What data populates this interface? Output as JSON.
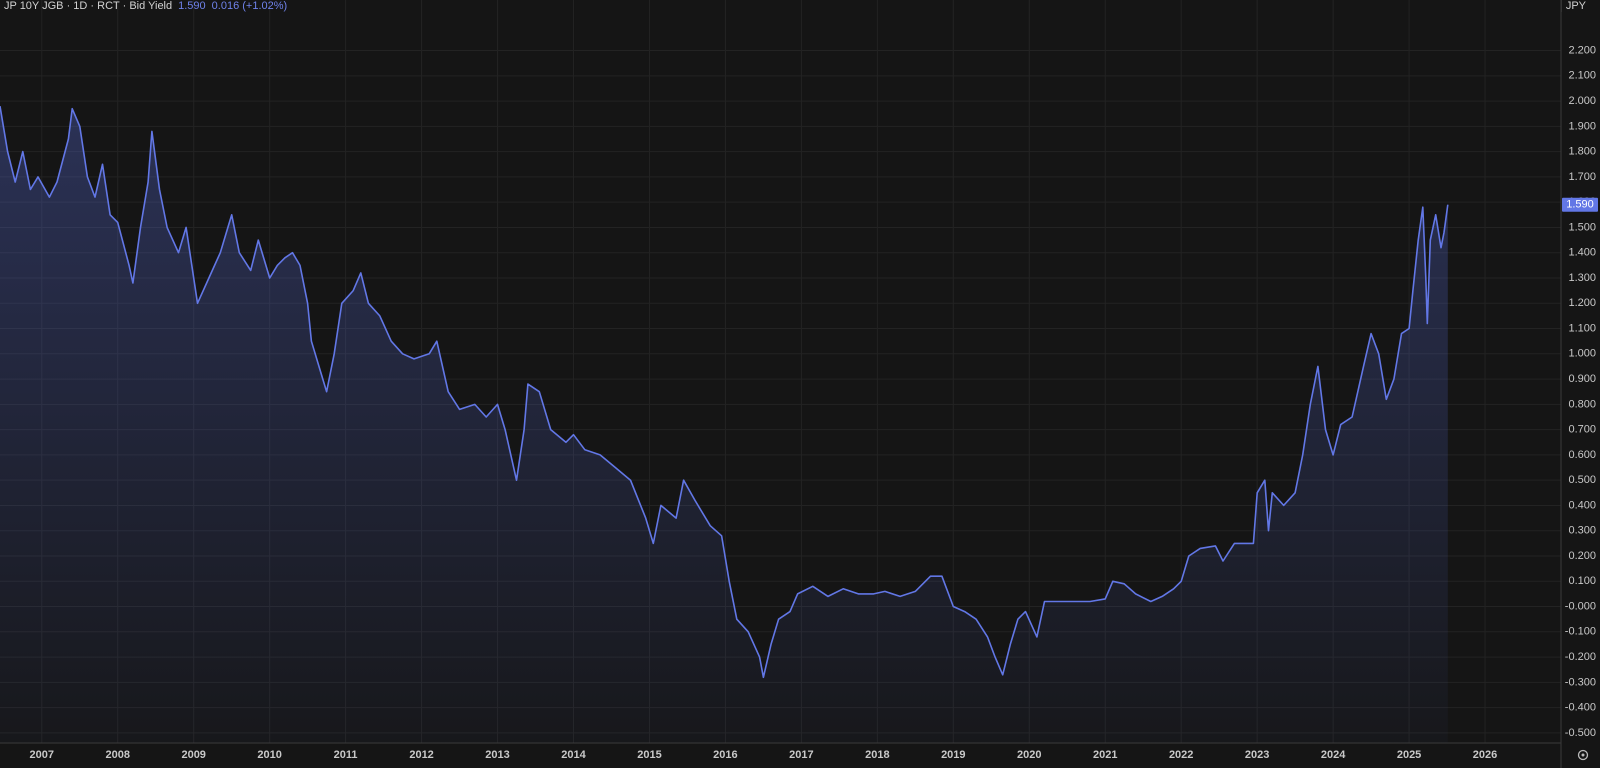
{
  "chart_data": {
    "type": "line",
    "title": "JP 10Y JGB · 1D · RCT · Bid Yield",
    "last_label": "1.590",
    "change": "0.016 (+1.02%)",
    "currency": "JPY",
    "color": "#6277e6",
    "grid": true,
    "xlim": [
      2006.45,
      2027.0
    ],
    "xticks": [
      2007,
      2008,
      2009,
      2010,
      2011,
      2012,
      2013,
      2014,
      2015,
      2016,
      2017,
      2018,
      2019,
      2020,
      2021,
      2022,
      2023,
      2024,
      2025,
      2026
    ],
    "ylim": [
      -0.54,
      2.4
    ],
    "yticks": [
      {
        "value": 2.2,
        "label": "2.200"
      },
      {
        "value": 2.1,
        "label": "2.100"
      },
      {
        "value": 2.0,
        "label": "2.000"
      },
      {
        "value": 1.9,
        "label": "1.900"
      },
      {
        "value": 1.8,
        "label": "1.800"
      },
      {
        "value": 1.7,
        "label": "1.700"
      },
      {
        "value": 1.6,
        "label": "1.600"
      },
      {
        "value": 1.5,
        "label": "1.500"
      },
      {
        "value": 1.4,
        "label": "1.400"
      },
      {
        "value": 1.3,
        "label": "1.300"
      },
      {
        "value": 1.2,
        "label": "1.200"
      },
      {
        "value": 1.1,
        "label": "1.100"
      },
      {
        "value": 1.0,
        "label": "1.000"
      },
      {
        "value": 0.9,
        "label": "0.900"
      },
      {
        "value": 0.8,
        "label": "0.800"
      },
      {
        "value": 0.7,
        "label": "0.700"
      },
      {
        "value": 0.6,
        "label": "0.600"
      },
      {
        "value": 0.5,
        "label": "0.500"
      },
      {
        "value": 0.4,
        "label": "0.400"
      },
      {
        "value": 0.3,
        "label": "0.300"
      },
      {
        "value": 0.2,
        "label": "0.200"
      },
      {
        "value": 0.1,
        "label": "0.100"
      },
      {
        "value": 0,
        "label": "-0.000"
      },
      {
        "value": -0.1,
        "label": "-0.100"
      },
      {
        "value": -0.2,
        "label": "-0.200"
      },
      {
        "value": -0.3,
        "label": "-0.300"
      },
      {
        "value": -0.4,
        "label": "-0.400"
      },
      {
        "value": -0.5,
        "label": "-0.500"
      }
    ],
    "x": [
      2006.45,
      2006.55,
      2006.65,
      2006.75,
      2006.85,
      2006.95,
      2007.1,
      2007.2,
      2007.35,
      2007.4,
      2007.5,
      2007.6,
      2007.7,
      2007.8,
      2007.9,
      2008.0,
      2008.15,
      2008.2,
      2008.3,
      2008.4,
      2008.45,
      2008.55,
      2008.65,
      2008.8,
      2008.9,
      2009.0,
      2009.05,
      2009.2,
      2009.35,
      2009.45,
      2009.5,
      2009.6,
      2009.75,
      2009.85,
      2010.0,
      2010.1,
      2010.2,
      2010.3,
      2010.4,
      2010.5,
      2010.55,
      2010.7,
      2010.75,
      2010.85,
      2010.95,
      2011.1,
      2011.2,
      2011.3,
      2011.45,
      2011.6,
      2011.75,
      2011.9,
      2012.1,
      2012.2,
      2012.35,
      2012.5,
      2012.7,
      2012.85,
      2013.0,
      2013.1,
      2013.25,
      2013.35,
      2013.4,
      2013.55,
      2013.7,
      2013.9,
      2014.0,
      2014.15,
      2014.35,
      2014.55,
      2014.75,
      2014.95,
      2015.05,
      2015.15,
      2015.35,
      2015.45,
      2015.6,
      2015.8,
      2015.95,
      2016.05,
      2016.15,
      2016.3,
      2016.45,
      2016.5,
      2016.6,
      2016.7,
      2016.85,
      2016.95,
      2017.15,
      2017.35,
      2017.55,
      2017.75,
      2017.95,
      2018.1,
      2018.3,
      2018.5,
      2018.7,
      2018.85,
      2019.0,
      2019.15,
      2019.3,
      2019.45,
      2019.55,
      2019.65,
      2019.75,
      2019.85,
      2019.95,
      2020.1,
      2020.2,
      2020.4,
      2020.6,
      2020.8,
      2021.0,
      2021.1,
      2021.25,
      2021.4,
      2021.6,
      2021.75,
      2021.9,
      2022.0,
      2022.1,
      2022.25,
      2022.45,
      2022.55,
      2022.7,
      2022.95,
      2023.0,
      2023.1,
      2023.15,
      2023.2,
      2023.35,
      2023.5,
      2023.6,
      2023.7,
      2023.8,
      2023.9,
      2024.0,
      2024.1,
      2024.25,
      2024.4,
      2024.5,
      2024.6,
      2024.7,
      2024.8,
      2024.9,
      2025.0,
      2025.05,
      2025.12,
      2025.18,
      2025.22,
      2025.24,
      2025.28,
      2025.35,
      2025.42,
      2025.46,
      2025.51
    ],
    "values": [
      1.98,
      1.8,
      1.68,
      1.8,
      1.65,
      1.7,
      1.62,
      1.68,
      1.85,
      1.97,
      1.9,
      1.7,
      1.62,
      1.75,
      1.55,
      1.52,
      1.35,
      1.28,
      1.5,
      1.68,
      1.88,
      1.65,
      1.5,
      1.4,
      1.5,
      1.3,
      1.2,
      1.3,
      1.4,
      1.5,
      1.55,
      1.4,
      1.33,
      1.45,
      1.3,
      1.35,
      1.38,
      1.4,
      1.35,
      1.2,
      1.05,
      0.9,
      0.85,
      1.0,
      1.2,
      1.25,
      1.32,
      1.2,
      1.15,
      1.05,
      1.0,
      0.98,
      1.0,
      1.05,
      0.85,
      0.78,
      0.8,
      0.75,
      0.8,
      0.7,
      0.5,
      0.7,
      0.88,
      0.85,
      0.7,
      0.65,
      0.68,
      0.62,
      0.6,
      0.55,
      0.5,
      0.35,
      0.25,
      0.4,
      0.35,
      0.5,
      0.42,
      0.32,
      0.28,
      0.1,
      -0.05,
      -0.1,
      -0.2,
      -0.28,
      -0.15,
      -0.05,
      -0.02,
      0.05,
      0.08,
      0.04,
      0.07,
      0.05,
      0.05,
      0.06,
      0.04,
      0.06,
      0.12,
      0.12,
      0.0,
      -0.02,
      -0.05,
      -0.12,
      -0.2,
      -0.27,
      -0.15,
      -0.05,
      -0.02,
      -0.12,
      0.02,
      0.02,
      0.02,
      0.02,
      0.03,
      0.1,
      0.09,
      0.05,
      0.02,
      0.04,
      0.07,
      0.1,
      0.2,
      0.23,
      0.24,
      0.18,
      0.25,
      0.25,
      0.45,
      0.5,
      0.3,
      0.45,
      0.4,
      0.45,
      0.6,
      0.8,
      0.95,
      0.7,
      0.6,
      0.72,
      0.75,
      0.95,
      1.08,
      1.0,
      0.82,
      0.9,
      1.08,
      1.1,
      1.25,
      1.45,
      1.58,
      1.3,
      1.12,
      1.45,
      1.55,
      1.42,
      1.48,
      1.59
    ]
  }
}
